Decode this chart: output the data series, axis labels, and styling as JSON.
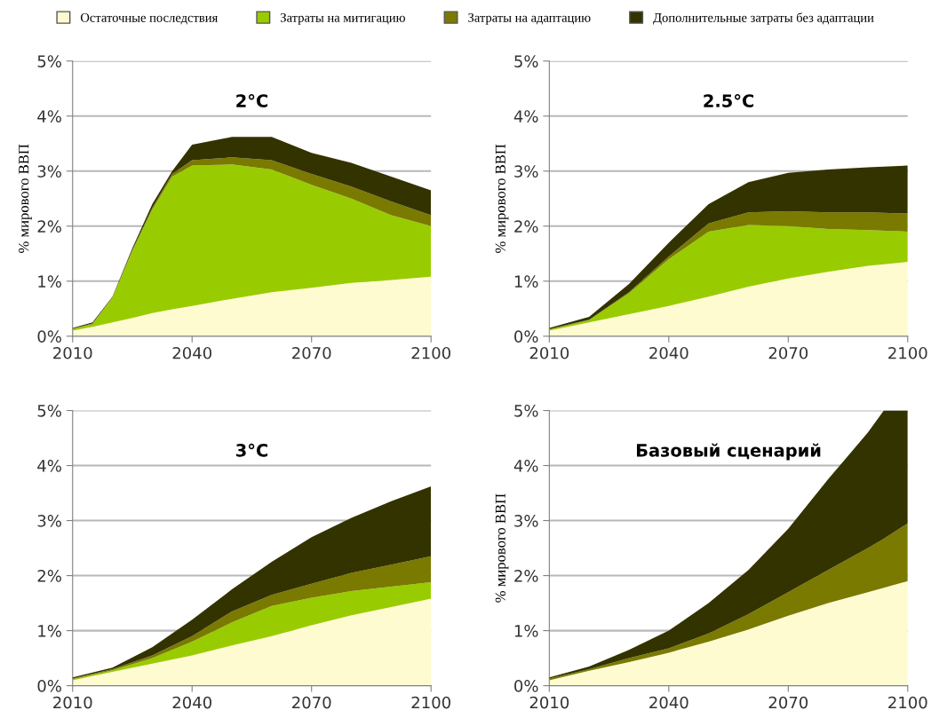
{
  "chart_data": [
    {
      "type": "area",
      "stacked": true,
      "title": "2°C",
      "ylabel": "% мирового ВВП",
      "xlim": [
        2010,
        2100
      ],
      "xticks": [
        2010,
        2040,
        2070,
        2100
      ],
      "ylim": [
        0,
        5
      ],
      "yticks": [
        {
          "value": 0,
          "label": "0%"
        },
        {
          "value": 1,
          "label": "1%"
        },
        {
          "value": 2,
          "label": "2%"
        },
        {
          "value": 3,
          "label": "3%"
        },
        {
          "value": 4,
          "label": "4%"
        },
        {
          "value": 5,
          "label": "5%"
        }
      ],
      "grid": "y",
      "legend": "top",
      "x": [
        2010,
        2015,
        2020,
        2025,
        2030,
        2035,
        2040,
        2050,
        2060,
        2070,
        2080,
        2090,
        2100
      ],
      "series": [
        {
          "name": "Остаточные последствия",
          "color": "#fffbd0",
          "values": [
            0.1,
            0.17,
            0.25,
            0.33,
            0.42,
            0.49,
            0.55,
            0.68,
            0.8,
            0.88,
            0.97,
            1.02,
            1.08
          ]
        },
        {
          "name": "Затраты на митигацию",
          "color": "#99cc00",
          "values": [
            0.03,
            0.05,
            0.45,
            1.22,
            1.88,
            2.41,
            2.55,
            2.44,
            2.23,
            1.87,
            1.53,
            1.18,
            0.92
          ]
        },
        {
          "name": "Затраты на адаптацию",
          "color": "#7a7a00",
          "values": [
            0.01,
            0.01,
            0.01,
            0.02,
            0.03,
            0.05,
            0.1,
            0.13,
            0.17,
            0.2,
            0.22,
            0.25,
            0.2
          ]
        },
        {
          "name": "Дополнительные затраты без адаптации",
          "color": "#333300",
          "values": [
            0.01,
            0.02,
            0.01,
            0.03,
            0.07,
            0.05,
            0.28,
            0.37,
            0.42,
            0.38,
            0.43,
            0.45,
            0.45
          ]
        }
      ]
    },
    {
      "type": "area",
      "stacked": true,
      "title": "2.5°C",
      "ylabel": "% мирового ВВП",
      "xlim": [
        2010,
        2100
      ],
      "xticks": [
        2010,
        2040,
        2070,
        2100
      ],
      "ylim": [
        0,
        5
      ],
      "yticks": [
        {
          "value": 0,
          "label": "0%"
        },
        {
          "value": 1,
          "label": "1%"
        },
        {
          "value": 2,
          "label": "2%"
        },
        {
          "value": 3,
          "label": "3%"
        },
        {
          "value": 4,
          "label": "4%"
        },
        {
          "value": 5,
          "label": "5%"
        }
      ],
      "grid": "y",
      "x": [
        2010,
        2020,
        2030,
        2040,
        2050,
        2060,
        2070,
        2080,
        2090,
        2100
      ],
      "series": [
        {
          "color": "#fffbd0",
          "values": [
            0.1,
            0.25,
            0.4,
            0.55,
            0.72,
            0.9,
            1.05,
            1.17,
            1.28,
            1.35
          ]
        },
        {
          "color": "#99cc00",
          "values": [
            0.02,
            0.04,
            0.38,
            0.85,
            1.18,
            1.12,
            0.95,
            0.78,
            0.65,
            0.55
          ]
        },
        {
          "color": "#7a7a00",
          "values": [
            0.01,
            0.01,
            0.02,
            0.05,
            0.15,
            0.23,
            0.27,
            0.3,
            0.32,
            0.33
          ]
        },
        {
          "color": "#333300",
          "values": [
            0.02,
            0.05,
            0.15,
            0.25,
            0.35,
            0.55,
            0.7,
            0.78,
            0.82,
            0.87
          ]
        }
      ]
    },
    {
      "type": "area",
      "stacked": true,
      "title": "3°C",
      "xlim": [
        2010,
        2100
      ],
      "xticks": [
        2010,
        2040,
        2070,
        2100
      ],
      "ylim": [
        0,
        5
      ],
      "yticks": [
        {
          "value": 0,
          "label": "0%"
        },
        {
          "value": 1,
          "label": "1%"
        },
        {
          "value": 2,
          "label": "2%"
        },
        {
          "value": 3,
          "label": "3%"
        },
        {
          "value": 4,
          "label": "4%"
        },
        {
          "value": 5,
          "label": "5%"
        }
      ],
      "grid": "y",
      "x": [
        2010,
        2020,
        2030,
        2040,
        2050,
        2060,
        2070,
        2080,
        2090,
        2100
      ],
      "series": [
        {
          "color": "#fffbd0",
          "values": [
            0.1,
            0.25,
            0.4,
            0.55,
            0.73,
            0.9,
            1.1,
            1.28,
            1.43,
            1.58
          ]
        },
        {
          "color": "#99cc00",
          "values": [
            0.02,
            0.03,
            0.1,
            0.25,
            0.42,
            0.55,
            0.5,
            0.44,
            0.37,
            0.3
          ]
        },
        {
          "color": "#7a7a00",
          "values": [
            0.01,
            0.02,
            0.05,
            0.1,
            0.2,
            0.2,
            0.25,
            0.33,
            0.4,
            0.47
          ]
        },
        {
          "color": "#333300",
          "values": [
            0.02,
            0.03,
            0.15,
            0.3,
            0.4,
            0.6,
            0.85,
            1.0,
            1.15,
            1.27
          ]
        }
      ]
    },
    {
      "type": "area",
      "stacked": true,
      "title": "Базовый сценарий",
      "ylabel": "% мирового ВВП",
      "xlim": [
        2010,
        2100
      ],
      "xticks": [
        2010,
        2040,
        2070,
        2100
      ],
      "ylim": [
        0,
        5
      ],
      "yticks": [
        {
          "value": 0,
          "label": "0%"
        },
        {
          "value": 1,
          "label": "1%"
        },
        {
          "value": 2,
          "label": "2%"
        },
        {
          "value": 3,
          "label": "3%"
        },
        {
          "value": 4,
          "label": "4%"
        },
        {
          "value": 5,
          "label": "5%"
        }
      ],
      "grid": "y",
      "x": [
        2010,
        2020,
        2030,
        2040,
        2050,
        2060,
        2070,
        2080,
        2090,
        2094,
        2100
      ],
      "series": [
        {
          "color": "#fffbd0",
          "values": [
            0.1,
            0.27,
            0.43,
            0.6,
            0.8,
            1.02,
            1.27,
            1.5,
            1.7,
            1.78,
            1.9
          ]
        },
        {
          "color": "#7a7a00",
          "values": [
            0.03,
            0.03,
            0.07,
            0.08,
            0.15,
            0.28,
            0.43,
            0.6,
            0.8,
            0.89,
            1.05
          ]
        },
        {
          "color": "#333300",
          "values": [
            0.02,
            0.05,
            0.15,
            0.32,
            0.55,
            0.8,
            1.15,
            1.65,
            2.1,
            2.33,
            2.05
          ]
        }
      ]
    }
  ]
}
